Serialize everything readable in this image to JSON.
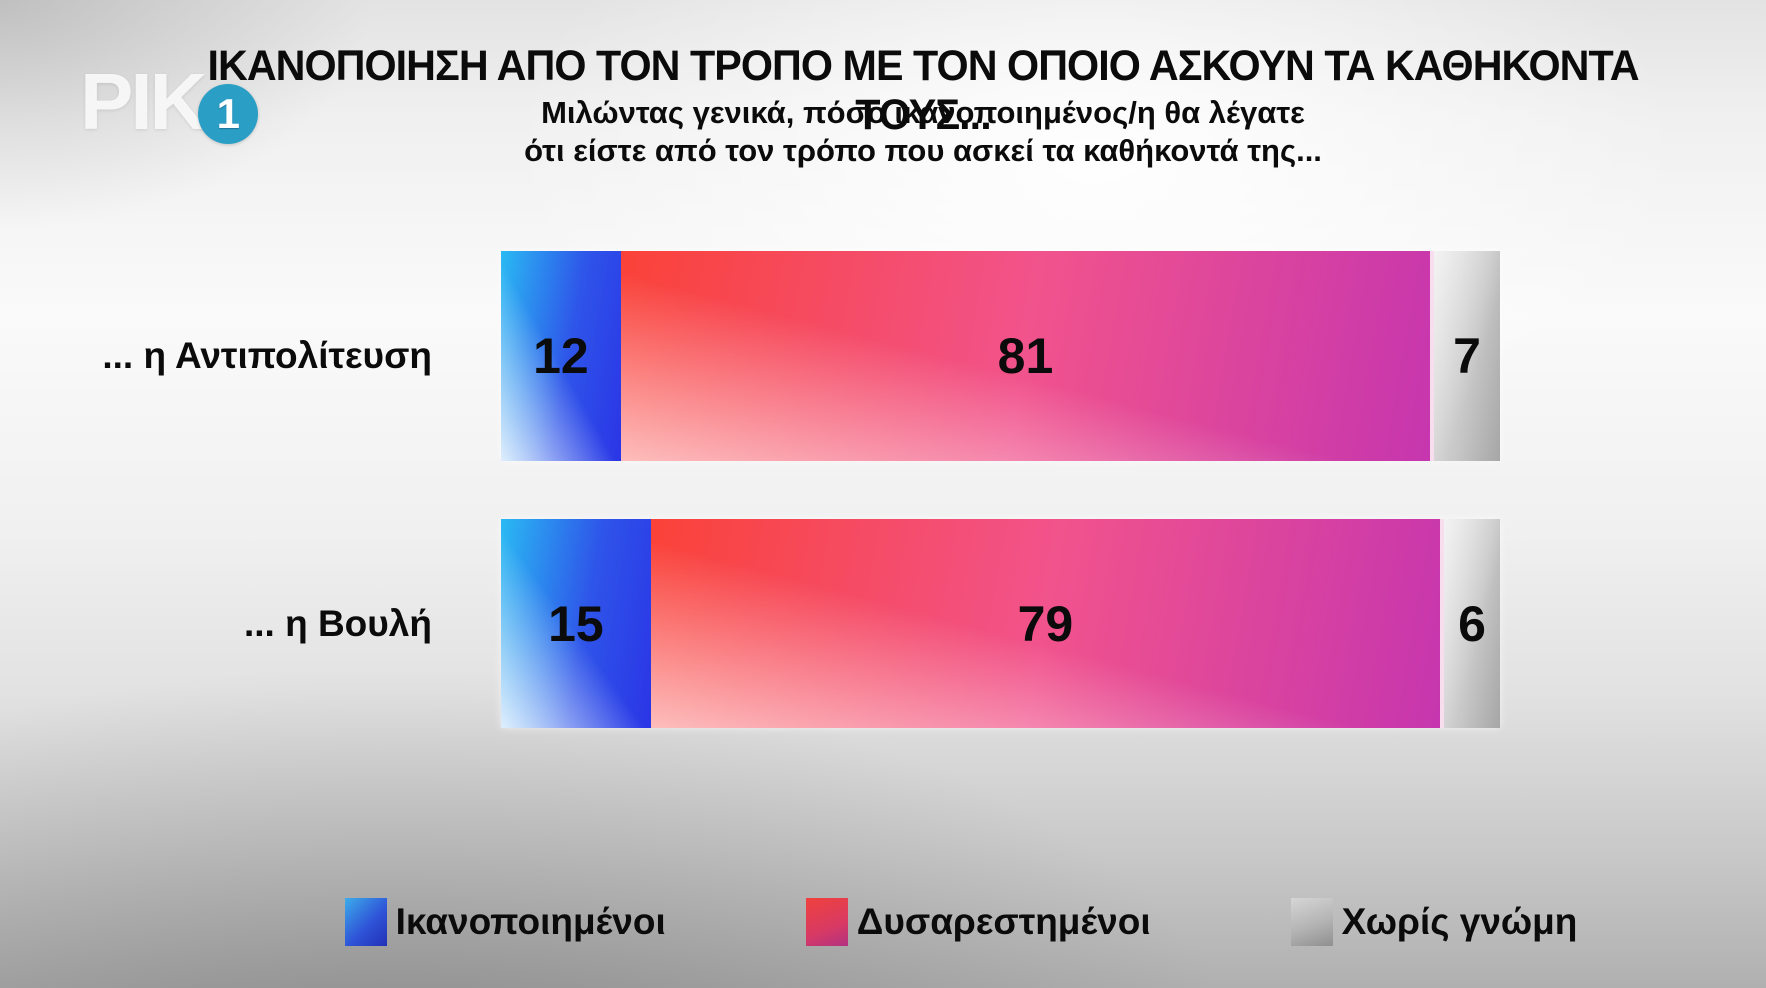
{
  "branding": {
    "channel_letters": "ΡΙΚ",
    "channel_number": "1",
    "circle_color": "#2b9ec6"
  },
  "header": {
    "title": "ΙΚΑΝΟΠΟΙΗΣΗ ΑΠΟ ΤΟΝ ΤΡΟΠΟ ΜΕ ΤΟΝ ΟΠΟΙΟ ΑΣΚΟΥΝ ΤΑ ΚΑΘΗΚΟΝΤΑ ΤΟΥΣ...",
    "subtitle_line1": "Μιλώντας γενικά, πόσο ικανοποιημένος/η θα λέγατε",
    "subtitle_line2": "ότι είστε από τον τρόπο που ασκεί τα καθήκοντά της..."
  },
  "chart_data": {
    "type": "bar",
    "orientation": "horizontal",
    "stacked": true,
    "title": "ΙΚΑΝΟΠΟΙΗΣΗ ΑΠΟ ΤΟΝ ΤΡΟΠΟ ΜΕ ΤΟΝ ΟΠΟΙΟ ΑΣΚΟΥΝ ΤΑ ΚΑΘΗΚΟΝΤΑ ΤΟΥΣ...",
    "subtitle": "Μιλώντας γενικά, πόσο ικανοποιημένος/η θα λέγατε ότι είστε από τον τρόπο που ασκεί τα καθήκοντά της...",
    "categories": [
      "... η Αντιπολίτευση",
      "... η Βουλή"
    ],
    "series": [
      {
        "name": "Ικανοποιημένοι",
        "semantic": "satisfied",
        "color_start": "#2abaf3",
        "color_end": "#2b35e6",
        "values": [
          12,
          15
        ]
      },
      {
        "name": "Δυσαρεστημένοι",
        "semantic": "dissatisfied",
        "color_start": "#fa4238",
        "color_end": "#c636ae",
        "values": [
          81,
          79
        ]
      },
      {
        "name": "Χωρίς γνώμη",
        "semantic": "no-opinion",
        "color_start": "#e4e4e4",
        "color_end": "#a6a6a6",
        "values": [
          7,
          6
        ]
      }
    ],
    "value_range": [
      0,
      100
    ],
    "data_labels": true,
    "legend_position": "bottom",
    "grid": false
  }
}
